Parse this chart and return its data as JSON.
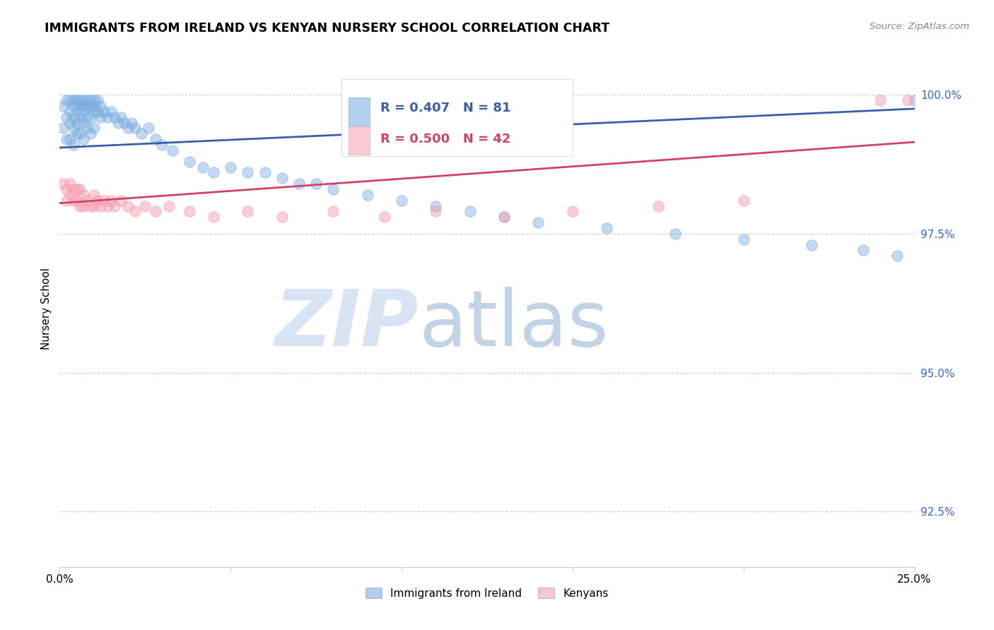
{
  "title": "IMMIGRANTS FROM IRELAND VS KENYAN NURSERY SCHOOL CORRELATION CHART",
  "source": "Source: ZipAtlas.com",
  "ylabel": "Nursery School",
  "yticks": [
    "100.0%",
    "97.5%",
    "95.0%",
    "92.5%"
  ],
  "ytick_vals": [
    1.0,
    0.975,
    0.95,
    0.925
  ],
  "xlim": [
    0.0,
    0.25
  ],
  "ylim": [
    0.915,
    1.008
  ],
  "blue_R": 0.407,
  "blue_N": 81,
  "pink_R": 0.5,
  "pink_N": 42,
  "blue_color": "#7aace0",
  "pink_color": "#f4a0b0",
  "blue_line_color": "#3a5faa",
  "pink_line_color": "#cc4466",
  "legend_label_blue": "Immigrants from Ireland",
  "legend_label_pink": "Kenyans",
  "blue_x": [
    0.001,
    0.001,
    0.002,
    0.002,
    0.002,
    0.003,
    0.003,
    0.003,
    0.003,
    0.004,
    0.004,
    0.004,
    0.004,
    0.004,
    0.005,
    0.005,
    0.005,
    0.005,
    0.006,
    0.006,
    0.006,
    0.006,
    0.007,
    0.007,
    0.007,
    0.007,
    0.007,
    0.008,
    0.008,
    0.008,
    0.008,
    0.009,
    0.009,
    0.009,
    0.009,
    0.01,
    0.01,
    0.01,
    0.01,
    0.011,
    0.011,
    0.012,
    0.012,
    0.013,
    0.014,
    0.015,
    0.016,
    0.017,
    0.018,
    0.019,
    0.02,
    0.021,
    0.022,
    0.024,
    0.026,
    0.028,
    0.03,
    0.033,
    0.038,
    0.042,
    0.045,
    0.05,
    0.055,
    0.06,
    0.065,
    0.07,
    0.075,
    0.08,
    0.09,
    0.1,
    0.11,
    0.12,
    0.13,
    0.14,
    0.16,
    0.18,
    0.2,
    0.22,
    0.235,
    0.245,
    0.25
  ],
  "blue_y": [
    0.998,
    0.994,
    0.999,
    0.996,
    0.992,
    0.999,
    0.997,
    0.995,
    0.992,
    0.999,
    0.998,
    0.996,
    0.994,
    0.991,
    0.999,
    0.997,
    0.995,
    0.993,
    0.999,
    0.998,
    0.996,
    0.993,
    0.999,
    0.998,
    0.997,
    0.995,
    0.992,
    0.999,
    0.998,
    0.996,
    0.994,
    0.999,
    0.998,
    0.996,
    0.993,
    0.999,
    0.998,
    0.997,
    0.994,
    0.999,
    0.997,
    0.998,
    0.996,
    0.997,
    0.996,
    0.997,
    0.996,
    0.995,
    0.996,
    0.995,
    0.994,
    0.995,
    0.994,
    0.993,
    0.994,
    0.992,
    0.991,
    0.99,
    0.988,
    0.987,
    0.986,
    0.987,
    0.986,
    0.986,
    0.985,
    0.984,
    0.984,
    0.983,
    0.982,
    0.981,
    0.98,
    0.979,
    0.978,
    0.977,
    0.976,
    0.975,
    0.974,
    0.973,
    0.972,
    0.971,
    0.999
  ],
  "pink_x": [
    0.001,
    0.002,
    0.002,
    0.003,
    0.003,
    0.004,
    0.004,
    0.005,
    0.005,
    0.006,
    0.006,
    0.007,
    0.007,
    0.008,
    0.009,
    0.01,
    0.01,
    0.011,
    0.012,
    0.013,
    0.014,
    0.015,
    0.016,
    0.018,
    0.02,
    0.022,
    0.025,
    0.028,
    0.032,
    0.038,
    0.045,
    0.055,
    0.065,
    0.08,
    0.095,
    0.11,
    0.13,
    0.15,
    0.175,
    0.2,
    0.24,
    0.248
  ],
  "pink_y": [
    0.984,
    0.983,
    0.981,
    0.984,
    0.982,
    0.983,
    0.981,
    0.983,
    0.981,
    0.983,
    0.98,
    0.982,
    0.98,
    0.981,
    0.98,
    0.982,
    0.98,
    0.981,
    0.98,
    0.981,
    0.98,
    0.981,
    0.98,
    0.981,
    0.98,
    0.979,
    0.98,
    0.979,
    0.98,
    0.979,
    0.978,
    0.979,
    0.978,
    0.979,
    0.978,
    0.979,
    0.978,
    0.979,
    0.98,
    0.981,
    0.999,
    0.999
  ],
  "blue_trend": [
    0.9905,
    0.9975
  ],
  "pink_trend": [
    0.9805,
    0.9915
  ],
  "marker_size": 120
}
